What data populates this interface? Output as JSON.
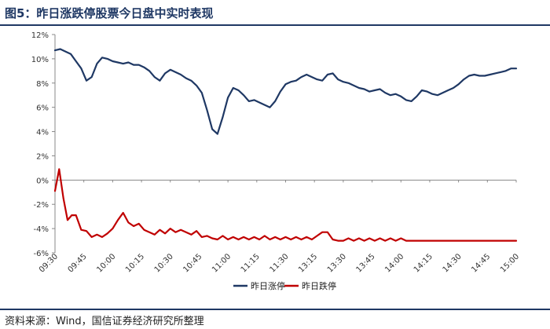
{
  "header": {
    "title": "图5：昨日涨跌停股票今日盘中实时表现"
  },
  "footer": {
    "source": "资料来源：Wind，国信证券经济研究所整理"
  },
  "chart_data": {
    "type": "line",
    "title": "",
    "xlabel": "",
    "ylabel": "",
    "ylim": [
      -6,
      12
    ],
    "y_ticks": [
      12,
      10,
      8,
      6,
      4,
      2,
      0,
      -2,
      -4,
      -6
    ],
    "y_tick_labels": [
      "12%",
      "10%",
      "8%",
      "6%",
      "4%",
      "2%",
      "0%",
      "-2%",
      "-4%",
      "-6%"
    ],
    "x_tick_labels": [
      "09:30",
      "09:45",
      "10:00",
      "10:15",
      "10:30",
      "10:45",
      "11:00",
      "11:15",
      "11:30",
      "13:15",
      "13:30",
      "13:45",
      "14:00",
      "14:15",
      "14:30",
      "14:45",
      "15:00"
    ],
    "grid": false,
    "legend_position": "bottom",
    "series": [
      {
        "name": "昨日涨停",
        "color": "#1f3864",
        "points": [
          [
            0,
            10.7
          ],
          [
            1,
            10.8
          ],
          [
            2,
            10.6
          ],
          [
            3,
            10.4
          ],
          [
            4,
            9.8
          ],
          [
            5,
            9.2
          ],
          [
            6,
            8.2
          ],
          [
            7,
            8.5
          ],
          [
            8,
            9.6
          ],
          [
            9,
            10.1
          ],
          [
            10,
            10.0
          ],
          [
            11,
            9.8
          ],
          [
            12,
            9.7
          ],
          [
            13,
            9.6
          ],
          [
            14,
            9.7
          ],
          [
            15,
            9.5
          ],
          [
            16,
            9.5
          ],
          [
            17,
            9.3
          ],
          [
            18,
            9.0
          ],
          [
            19,
            8.5
          ],
          [
            20,
            8.2
          ],
          [
            21,
            8.8
          ],
          [
            22,
            9.1
          ],
          [
            23,
            8.9
          ],
          [
            24,
            8.7
          ],
          [
            25,
            8.4
          ],
          [
            26,
            8.2
          ],
          [
            27,
            7.8
          ],
          [
            28,
            7.2
          ],
          [
            29,
            5.8
          ],
          [
            30,
            4.2
          ],
          [
            31,
            3.8
          ],
          [
            32,
            5.2
          ],
          [
            33,
            6.8
          ],
          [
            34,
            7.6
          ],
          [
            35,
            7.4
          ],
          [
            36,
            7.0
          ],
          [
            37,
            6.5
          ],
          [
            38,
            6.6
          ],
          [
            39,
            6.4
          ],
          [
            40,
            6.2
          ],
          [
            41,
            6.0
          ],
          [
            42,
            6.5
          ],
          [
            43,
            7.3
          ],
          [
            44,
            7.9
          ],
          [
            45,
            8.1
          ],
          [
            46,
            8.2
          ],
          [
            47,
            8.5
          ],
          [
            48,
            8.7
          ],
          [
            49,
            8.5
          ],
          [
            50,
            8.3
          ],
          [
            51,
            8.2
          ],
          [
            52,
            8.7
          ],
          [
            53,
            8.8
          ],
          [
            54,
            8.3
          ],
          [
            55,
            8.1
          ],
          [
            56,
            8.0
          ],
          [
            57,
            7.8
          ],
          [
            58,
            7.6
          ],
          [
            59,
            7.5
          ],
          [
            60,
            7.3
          ],
          [
            61,
            7.4
          ],
          [
            62,
            7.5
          ],
          [
            63,
            7.2
          ],
          [
            64,
            7.0
          ],
          [
            65,
            7.1
          ],
          [
            66,
            6.9
          ],
          [
            67,
            6.6
          ],
          [
            68,
            6.5
          ],
          [
            69,
            6.9
          ],
          [
            70,
            7.4
          ],
          [
            71,
            7.3
          ],
          [
            72,
            7.1
          ],
          [
            73,
            7.0
          ],
          [
            74,
            7.2
          ],
          [
            75,
            7.4
          ],
          [
            76,
            7.6
          ],
          [
            77,
            7.9
          ],
          [
            78,
            8.3
          ],
          [
            79,
            8.6
          ],
          [
            80,
            8.7
          ],
          [
            81,
            8.6
          ],
          [
            82,
            8.6
          ],
          [
            83,
            8.7
          ],
          [
            84,
            8.8
          ],
          [
            85,
            8.9
          ],
          [
            86,
            9.0
          ],
          [
            87,
            9.2
          ],
          [
            88,
            9.2
          ]
        ]
      },
      {
        "name": "昨日跌停",
        "color": "#c00000",
        "points": [
          [
            0,
            -0.9
          ],
          [
            0.8,
            0.9
          ],
          [
            1.6,
            -1.5
          ],
          [
            2.4,
            -3.3
          ],
          [
            3.2,
            -2.9
          ],
          [
            4,
            -2.9
          ],
          [
            5,
            -4.1
          ],
          [
            6,
            -4.2
          ],
          [
            7,
            -4.7
          ],
          [
            8,
            -4.5
          ],
          [
            9,
            -4.7
          ],
          [
            10,
            -4.4
          ],
          [
            11,
            -4.0
          ],
          [
            12,
            -3.3
          ],
          [
            13,
            -2.7
          ],
          [
            14,
            -3.5
          ],
          [
            15,
            -3.8
          ],
          [
            16,
            -3.6
          ],
          [
            17,
            -4.1
          ],
          [
            18,
            -4.3
          ],
          [
            19,
            -4.5
          ],
          [
            20,
            -4.1
          ],
          [
            21,
            -4.4
          ],
          [
            22,
            -4.0
          ],
          [
            23,
            -4.3
          ],
          [
            24,
            -4.1
          ],
          [
            25,
            -4.3
          ],
          [
            26,
            -4.5
          ],
          [
            27,
            -4.2
          ],
          [
            28,
            -4.7
          ],
          [
            29,
            -4.6
          ],
          [
            30,
            -4.8
          ],
          [
            31,
            -4.9
          ],
          [
            32,
            -4.6
          ],
          [
            33,
            -4.9
          ],
          [
            34,
            -4.7
          ],
          [
            35,
            -4.9
          ],
          [
            36,
            -4.7
          ],
          [
            37,
            -4.9
          ],
          [
            38,
            -4.7
          ],
          [
            39,
            -4.9
          ],
          [
            40,
            -4.6
          ],
          [
            41,
            -4.9
          ],
          [
            42,
            -4.7
          ],
          [
            43,
            -4.9
          ],
          [
            44,
            -4.7
          ],
          [
            45,
            -4.9
          ],
          [
            46,
            -4.7
          ],
          [
            47,
            -4.9
          ],
          [
            48,
            -4.7
          ],
          [
            49,
            -4.9
          ],
          [
            50,
            -4.6
          ],
          [
            51,
            -4.3
          ],
          [
            52,
            -4.3
          ],
          [
            53,
            -4.9
          ],
          [
            54,
            -5.0
          ],
          [
            55,
            -5.0
          ],
          [
            56,
            -4.8
          ],
          [
            57,
            -5.0
          ],
          [
            58,
            -4.8
          ],
          [
            59,
            -5.0
          ],
          [
            60,
            -4.8
          ],
          [
            61,
            -5.0
          ],
          [
            62,
            -4.8
          ],
          [
            63,
            -5.0
          ],
          [
            64,
            -4.8
          ],
          [
            65,
            -5.0
          ],
          [
            66,
            -4.8
          ],
          [
            67,
            -5.0
          ],
          [
            68,
            -5.0
          ],
          [
            69,
            -5.0
          ],
          [
            70,
            -5.0
          ],
          [
            72,
            -5.0
          ],
          [
            74,
            -5.0
          ],
          [
            76,
            -5.0
          ],
          [
            78,
            -5.0
          ],
          [
            80,
            -5.0
          ],
          [
            82,
            -5.0
          ],
          [
            84,
            -5.0
          ],
          [
            86,
            -5.0
          ],
          [
            88,
            -5.0
          ]
        ]
      }
    ]
  }
}
